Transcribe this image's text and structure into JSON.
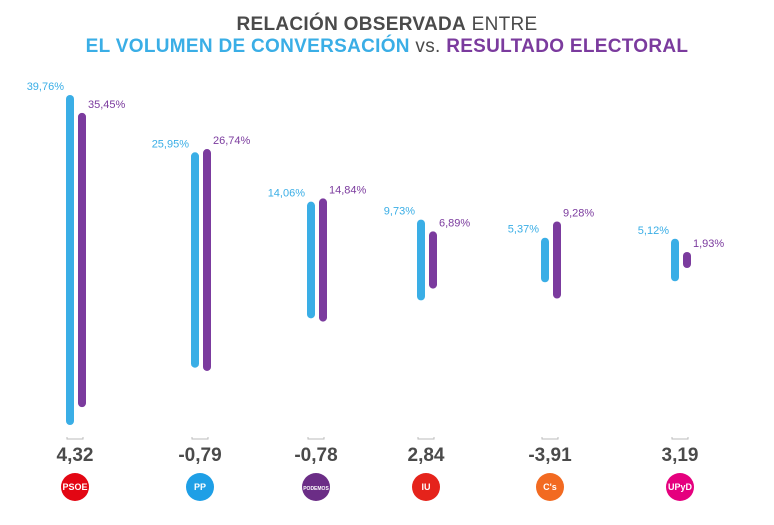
{
  "title": {
    "line1_bold": "RELACIÓN OBSERVADA",
    "line1_light": "ENTRE",
    "line2_part1": "EL VOLUMEN DE CONVERSACIÓN",
    "line2_vs": "vs.",
    "line2_part2": "RESULTADO ELECTORAL"
  },
  "colors": {
    "conversation": "#3aaee6",
    "electoral": "#7b3b9e",
    "difference_text": "#4a4a4a"
  },
  "chart_data": {
    "type": "bar",
    "title": "RELACIÓN OBSERVADA ENTRE EL VOLUMEN DE CONVERSACIÓN vs. RESULTADO ELECTORAL",
    "categories": [
      "PSOE",
      "PP",
      "PODEMOS",
      "IU",
      "C's",
      "UPyD"
    ],
    "series": [
      {
        "name": "Volumen de conversación",
        "values": [
          39.76,
          25.95,
          14.06,
          9.73,
          5.37,
          5.12
        ],
        "labels": [
          "39,76%",
          "25,95%",
          "14,06%",
          "9,73%",
          "5,37%",
          "5,12%"
        ]
      },
      {
        "name": "Resultado electoral",
        "values": [
          35.45,
          26.74,
          14.84,
          6.89,
          9.28,
          1.93
        ],
        "labels": [
          "35,45%",
          "26,74%",
          "14,84%",
          "6,89%",
          "9,28%",
          "1,93%"
        ]
      }
    ],
    "differences": [
      "4,32",
      "-0,79",
      "-0,78",
      "2,84",
      "-3,91",
      "3,19"
    ],
    "ylim": [
      0,
      40
    ],
    "grid": false,
    "xlabel": "",
    "ylabel": ""
  },
  "logos": [
    {
      "text": "PSOE",
      "color": "#e30613"
    },
    {
      "text": "PP",
      "color": "#1e9fe6"
    },
    {
      "text": "PODEMOS",
      "color": "#6b2d86"
    },
    {
      "text": "IU",
      "color": "#e5231b"
    },
    {
      "text": "C's",
      "color": "#f26a21"
    },
    {
      "text": "UPyD",
      "color": "#e5007e"
    }
  ]
}
